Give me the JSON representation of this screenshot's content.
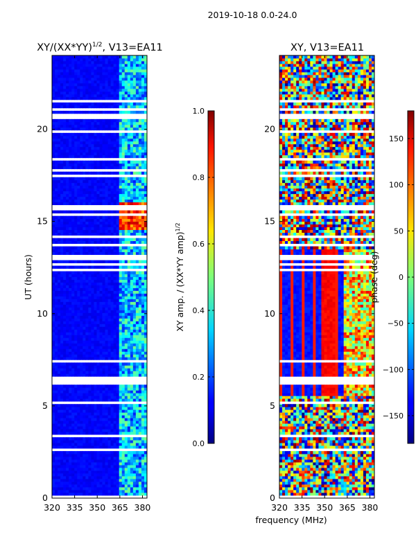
{
  "chart_data": [
    {
      "type": "heatmap",
      "suptitle": "2019-10-18 0.0-24.0",
      "title": "XY/(XX*YY)",
      "title_sup": "1/2",
      "title_suffix": ", V13=EA11",
      "xlabel": "frequency (MHz)",
      "ylabel": "UT (hours)",
      "xlim": [
        320,
        383
      ],
      "ylim": [
        0,
        24
      ],
      "xticks": [
        "320",
        "335",
        "350",
        "365",
        "380"
      ],
      "yticks": [
        "0",
        "5",
        "10",
        "15",
        "20"
      ],
      "colormap": "jet",
      "colorbar": {
        "label": "XY amp. / (XX*YY amp)",
        "label_sup": "1/2",
        "range": [
          0.0,
          1.0
        ],
        "ticks": [
          "0.0",
          "0.2",
          "0.4",
          "0.6",
          "0.8",
          "1.0"
        ]
      }
    },
    {
      "type": "heatmap",
      "title": "XY, V13=EA11",
      "xlabel": "frequency (MHz)",
      "xlim": [
        320,
        383
      ],
      "ylim": [
        0,
        24
      ],
      "xticks": [
        "320",
        "335",
        "350",
        "365",
        "380"
      ],
      "yticks": [
        "0",
        "5",
        "10",
        "15",
        "20"
      ],
      "colormap": "jet",
      "colorbar": {
        "label": "phase (deg)",
        "range": [
          -180,
          180
        ],
        "ticks": [
          "−150",
          "−100",
          "−50",
          "0",
          "50",
          "100",
          "150"
        ]
      }
    }
  ]
}
